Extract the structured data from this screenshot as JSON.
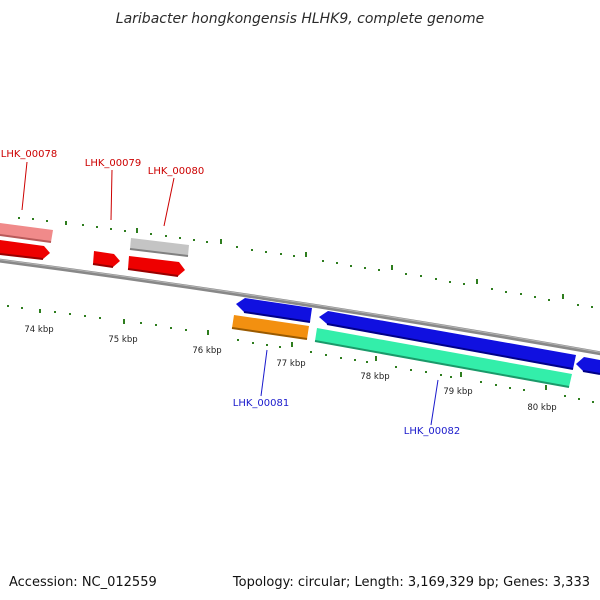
{
  "title": "Laribacter hongkongensis HLHK9, complete genome",
  "footer": {
    "accession": "Accession: NC_012559",
    "summary": "Topology: circular; Length: 3,169,329 bp; Genes: 3,333"
  },
  "colors": {
    "backbone": "#888888",
    "tick": "#2e7d1e",
    "forward_label": "#cc0000",
    "reverse_label": "#1a1acc",
    "gene_red": "#ee0000",
    "gene_pink": "#f08a8a",
    "gene_gray": "#c4c4c4",
    "gene_blue": "#1010e0",
    "gene_orange": "#f39010",
    "gene_teal": "#33eeaa"
  },
  "scale_labels": [
    "74 kbp",
    "75 kbp",
    "76 kbp",
    "77 kbp",
    "78 kbp",
    "79 kbp",
    "80 kbp"
  ],
  "gene_labels": {
    "forward": [
      "LHK_00078",
      "LHK_00079",
      "LHK_00080"
    ],
    "reverse": [
      "LHK_00081",
      "LHK_00082"
    ]
  }
}
